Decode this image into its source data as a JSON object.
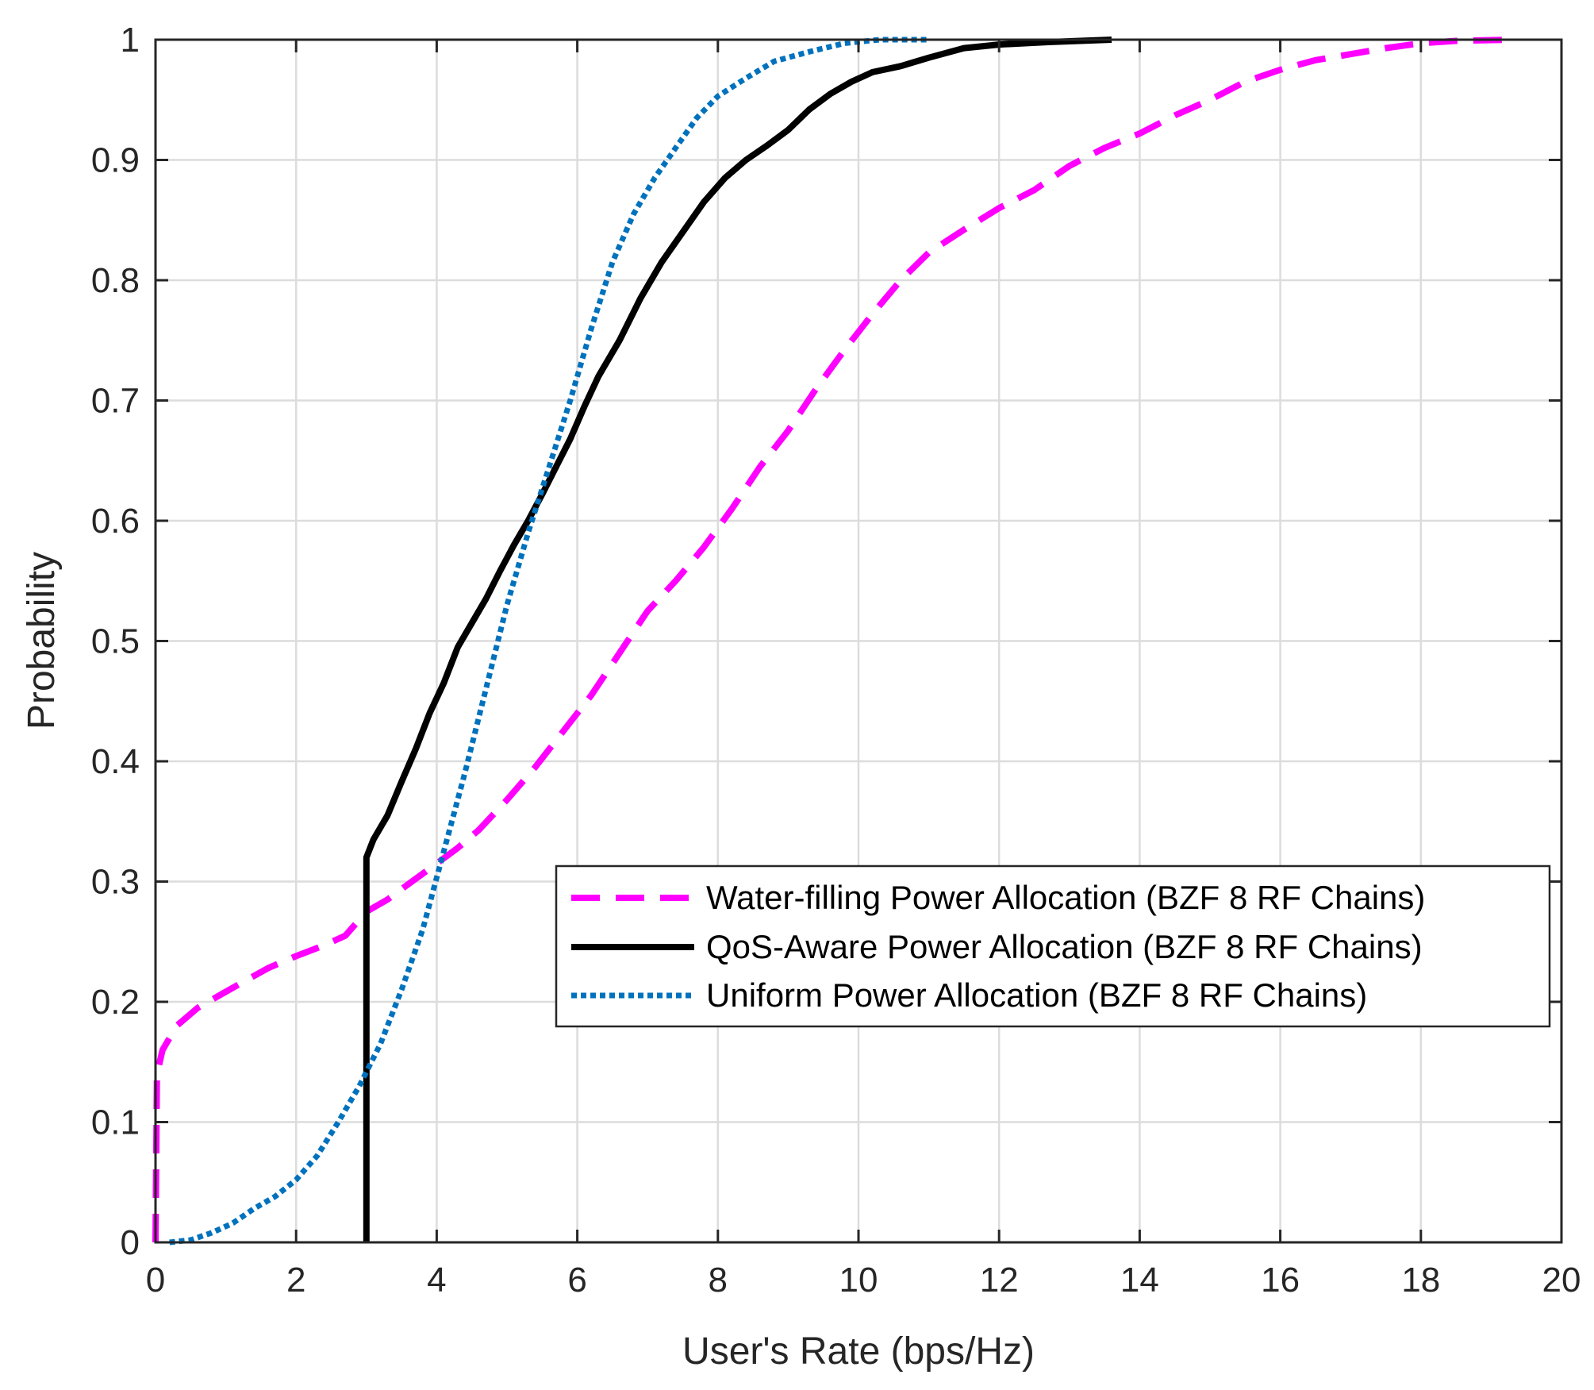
{
  "chart_data": {
    "type": "line",
    "title": "",
    "xlabel": "User's Rate (bps/Hz)",
    "ylabel": "Probability",
    "xlim": [
      0,
      20
    ],
    "ylim": [
      0,
      1
    ],
    "grid": true,
    "legend_position": "center-right",
    "x_ticks": [
      0,
      2,
      4,
      6,
      8,
      10,
      12,
      14,
      16,
      18,
      20
    ],
    "x_tick_labels": [
      "0",
      "2",
      "4",
      "6",
      "8",
      "10",
      "12",
      "14",
      "16",
      "18",
      "20"
    ],
    "y_ticks": [
      0,
      0.1,
      0.2,
      0.3,
      0.4,
      0.5,
      0.6,
      0.7,
      0.8,
      0.9,
      1
    ],
    "y_tick_labels": [
      "0",
      "0.1",
      "0.2",
      "0.3",
      "0.4",
      "0.5",
      "0.6",
      "0.7",
      "0.8",
      "0.9",
      "1"
    ],
    "series": [
      {
        "name": "Water-filling Power Allocation (BZF 8 RF Chains)",
        "color": "#ff00ff",
        "style": "dashed",
        "points": [
          [
            0,
            0
          ],
          [
            0.02,
            0.14
          ],
          [
            0.1,
            0.16
          ],
          [
            0.3,
            0.18
          ],
          [
            0.6,
            0.195
          ],
          [
            0.9,
            0.205
          ],
          [
            1.2,
            0.215
          ],
          [
            1.6,
            0.228
          ],
          [
            2.0,
            0.238
          ],
          [
            2.4,
            0.247
          ],
          [
            2.7,
            0.255
          ],
          [
            3.0,
            0.275
          ],
          [
            3.3,
            0.285
          ],
          [
            3.6,
            0.298
          ],
          [
            4.0,
            0.315
          ],
          [
            4.3,
            0.328
          ],
          [
            4.6,
            0.343
          ],
          [
            5.0,
            0.368
          ],
          [
            5.4,
            0.395
          ],
          [
            5.8,
            0.425
          ],
          [
            6.2,
            0.455
          ],
          [
            6.6,
            0.49
          ],
          [
            7.0,
            0.525
          ],
          [
            7.4,
            0.55
          ],
          [
            7.8,
            0.578
          ],
          [
            8.2,
            0.61
          ],
          [
            8.6,
            0.645
          ],
          [
            9.0,
            0.675
          ],
          [
            9.4,
            0.71
          ],
          [
            9.8,
            0.742
          ],
          [
            10.2,
            0.772
          ],
          [
            10.6,
            0.8
          ],
          [
            11.0,
            0.823
          ],
          [
            11.5,
            0.842
          ],
          [
            12.0,
            0.86
          ],
          [
            12.5,
            0.875
          ],
          [
            13.0,
            0.895
          ],
          [
            13.5,
            0.91
          ],
          [
            14.0,
            0.922
          ],
          [
            14.5,
            0.937
          ],
          [
            15.0,
            0.95
          ],
          [
            15.5,
            0.965
          ],
          [
            16.0,
            0.975
          ],
          [
            16.5,
            0.983
          ],
          [
            17.0,
            0.988
          ],
          [
            17.5,
            0.993
          ],
          [
            18.0,
            0.997
          ],
          [
            18.5,
            0.999
          ],
          [
            19.3,
            1.0
          ]
        ]
      },
      {
        "name": "QoS-Aware Power Allocation (BZF 8 RF Chains)",
        "color": "#000000",
        "style": "solid",
        "points": [
          [
            3,
            0
          ],
          [
            3,
            0.32
          ],
          [
            3.1,
            0.335
          ],
          [
            3.3,
            0.355
          ],
          [
            3.5,
            0.383
          ],
          [
            3.7,
            0.41
          ],
          [
            3.9,
            0.44
          ],
          [
            4.1,
            0.465
          ],
          [
            4.3,
            0.495
          ],
          [
            4.5,
            0.515
          ],
          [
            4.7,
            0.535
          ],
          [
            4.9,
            0.558
          ],
          [
            5.1,
            0.58
          ],
          [
            5.3,
            0.6
          ],
          [
            5.5,
            0.622
          ],
          [
            5.7,
            0.645
          ],
          [
            5.9,
            0.668
          ],
          [
            6.1,
            0.695
          ],
          [
            6.3,
            0.72
          ],
          [
            6.6,
            0.75
          ],
          [
            6.9,
            0.785
          ],
          [
            7.2,
            0.815
          ],
          [
            7.5,
            0.84
          ],
          [
            7.8,
            0.865
          ],
          [
            8.1,
            0.885
          ],
          [
            8.4,
            0.9
          ],
          [
            8.7,
            0.912
          ],
          [
            9.0,
            0.925
          ],
          [
            9.3,
            0.942
          ],
          [
            9.6,
            0.955
          ],
          [
            9.9,
            0.965
          ],
          [
            10.2,
            0.973
          ],
          [
            10.6,
            0.978
          ],
          [
            11.0,
            0.985
          ],
          [
            11.5,
            0.993
          ],
          [
            12.0,
            0.996
          ],
          [
            12.7,
            0.998
          ],
          [
            13.6,
            1.0
          ]
        ]
      },
      {
        "name": "Uniform Power Allocation (BZF 8 RF Chains)",
        "color": "#0072bd",
        "style": "dotted",
        "points": [
          [
            0.2,
            0
          ],
          [
            0.5,
            0.002
          ],
          [
            0.8,
            0.008
          ],
          [
            1.1,
            0.016
          ],
          [
            1.4,
            0.028
          ],
          [
            1.7,
            0.038
          ],
          [
            2.0,
            0.052
          ],
          [
            2.3,
            0.072
          ],
          [
            2.6,
            0.1
          ],
          [
            2.9,
            0.13
          ],
          [
            3.2,
            0.165
          ],
          [
            3.5,
            0.21
          ],
          [
            3.8,
            0.26
          ],
          [
            4.1,
            0.325
          ],
          [
            4.4,
            0.39
          ],
          [
            4.7,
            0.46
          ],
          [
            5.0,
            0.53
          ],
          [
            5.3,
            0.59
          ],
          [
            5.6,
            0.645
          ],
          [
            5.9,
            0.7
          ],
          [
            6.2,
            0.76
          ],
          [
            6.5,
            0.815
          ],
          [
            6.8,
            0.855
          ],
          [
            7.1,
            0.885
          ],
          [
            7.4,
            0.91
          ],
          [
            7.7,
            0.935
          ],
          [
            8.0,
            0.953
          ],
          [
            8.4,
            0.968
          ],
          [
            8.8,
            0.982
          ],
          [
            9.3,
            0.99
          ],
          [
            9.8,
            0.997
          ],
          [
            10.3,
            1.0
          ],
          [
            11.0,
            1.0
          ]
        ]
      }
    ]
  }
}
